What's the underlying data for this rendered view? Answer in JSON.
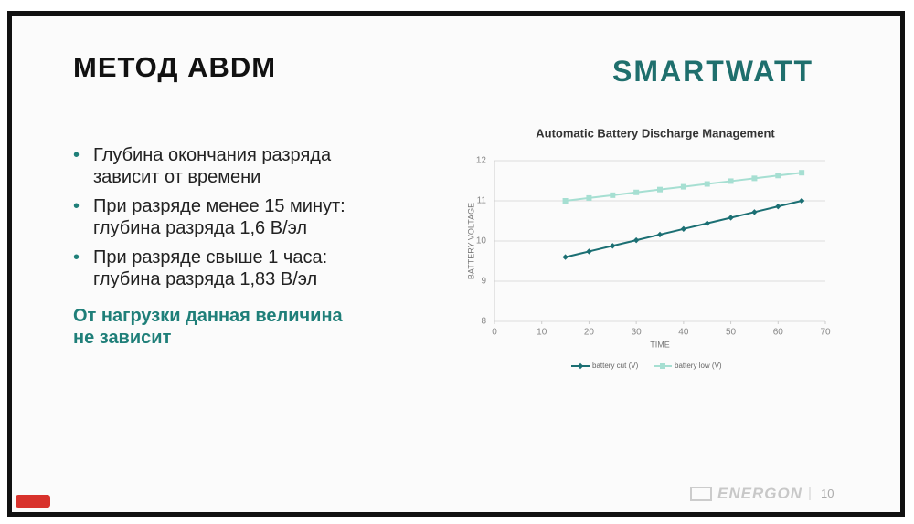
{
  "header": {
    "title": "МЕТОД ABDM",
    "logo": "SMARTWATT"
  },
  "bullets": [
    [
      "Глубина окончания разряда",
      "зависит от времени"
    ],
    [
      "При разряде менее 15 минут:",
      "глубина разряда 1,6 В/эл"
    ],
    [
      "При разряде свыше 1 часа:",
      "глубина разряда 1,83 В/эл"
    ]
  ],
  "highlight": [
    "От нагрузки данная величина",
    "не зависит"
  ],
  "chart_data": {
    "type": "line",
    "title": "Automatic Battery Discharge Management",
    "x_label": "TIME",
    "y_label": "BATTERY VOLTAGE",
    "x": [
      15,
      20,
      25,
      30,
      35,
      40,
      45,
      50,
      55,
      60,
      65
    ],
    "series": [
      {
        "name": "battery cut (V)",
        "color": "#1b6f73",
        "marker": "diamond",
        "values": [
          9.6,
          9.74,
          9.88,
          10.02,
          10.16,
          10.3,
          10.44,
          10.58,
          10.72,
          10.86,
          11.0
        ]
      },
      {
        "name": "battery low (V)",
        "color": "#a6dfd2",
        "marker": "square",
        "values": [
          11.0,
          11.07,
          11.14,
          11.21,
          11.28,
          11.35,
          11.42,
          11.49,
          11.56,
          11.63,
          11.7
        ]
      }
    ],
    "xlim": [
      0,
      70
    ],
    "xticks": [
      0,
      10,
      20,
      30,
      40,
      50,
      60,
      70
    ],
    "ylim": [
      8,
      12
    ],
    "yticks": [
      8,
      9,
      10,
      11,
      12
    ],
    "grid": true,
    "legend": "bottom"
  },
  "footer": {
    "brand": "ENERGON",
    "page": "10"
  }
}
